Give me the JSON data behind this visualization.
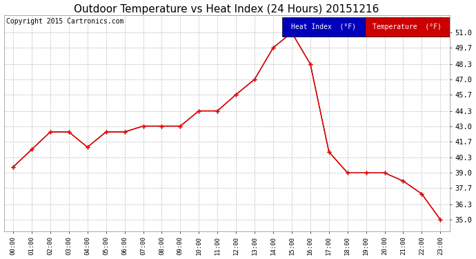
{
  "title": "Outdoor Temperature vs Heat Index (24 Hours) 20151216",
  "copyright": "Copyright 2015 Cartronics.com",
  "hours": [
    "00:00",
    "01:00",
    "02:00",
    "03:00",
    "04:00",
    "05:00",
    "06:00",
    "07:00",
    "08:00",
    "09:00",
    "10:00",
    "11:00",
    "12:00",
    "13:00",
    "14:00",
    "15:00",
    "16:00",
    "17:00",
    "18:00",
    "19:00",
    "20:00",
    "21:00",
    "22:00",
    "23:00"
  ],
  "temperature": [
    39.5,
    41.0,
    42.5,
    42.5,
    41.2,
    42.5,
    42.5,
    43.0,
    43.0,
    43.0,
    44.3,
    44.3,
    45.7,
    47.0,
    49.7,
    51.0,
    48.3,
    40.8,
    39.0,
    39.0,
    39.0,
    38.3,
    37.2,
    35.0
  ],
  "heat_index": [
    39.5,
    41.0,
    42.5,
    42.5,
    41.2,
    42.5,
    42.5,
    43.0,
    43.0,
    43.0,
    44.3,
    44.3,
    45.7,
    47.0,
    49.7,
    51.0,
    48.3,
    40.8,
    39.0,
    39.0,
    39.0,
    38.3,
    37.2,
    35.0
  ],
  "ylim_min": 34.0,
  "ylim_max": 52.5,
  "yticks": [
    35.0,
    36.3,
    37.7,
    39.0,
    40.3,
    41.7,
    43.0,
    44.3,
    45.7,
    47.0,
    48.3,
    49.7,
    51.0
  ],
  "temp_color": "#ff0000",
  "bg_color": "#ffffff",
  "grid_color": "#bbbbbb",
  "title_fontsize": 11,
  "copyright_fontsize": 7,
  "legend_heat_bg": "#0000bb",
  "legend_temp_bg": "#cc0000",
  "legend_heat_text": "Heat Index  (°F)",
  "legend_temp_text": "Temperature  (°F)"
}
